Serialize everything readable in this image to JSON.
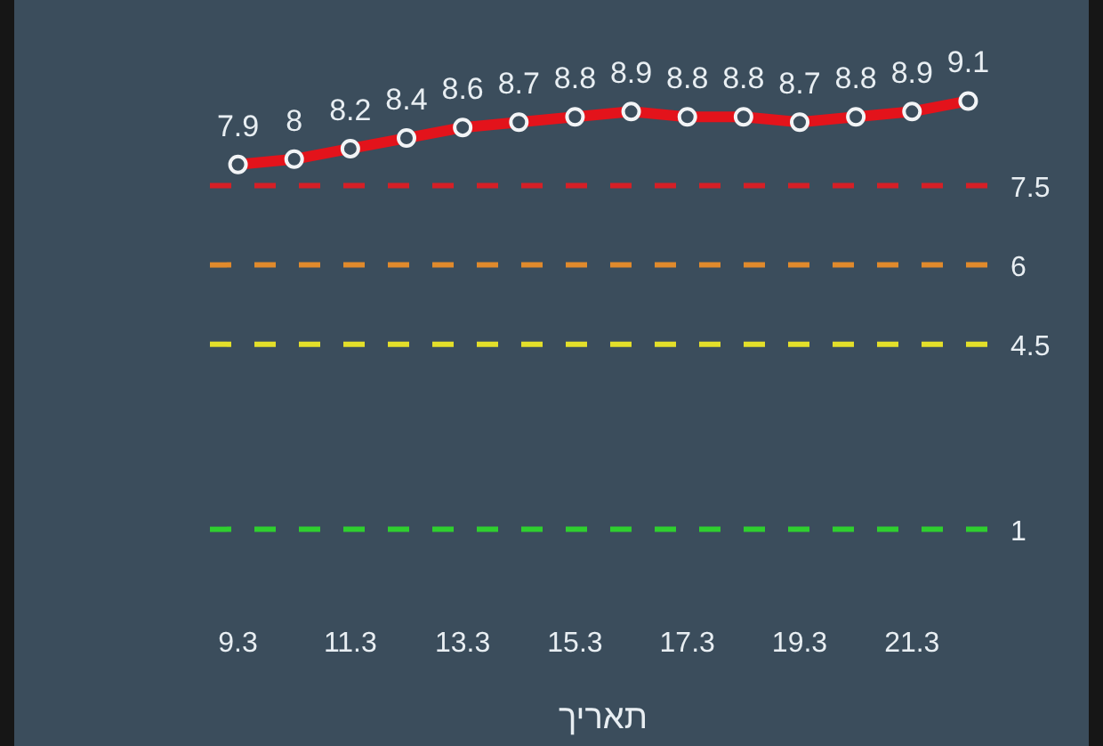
{
  "chart_data": {
    "type": "line",
    "xlabel": "תאריך",
    "categories": [
      "9.3",
      null,
      "11.3",
      null,
      "13.3",
      null,
      "15.3",
      null,
      "17.3",
      null,
      "19.3",
      null,
      "21.3",
      null
    ],
    "series": [
      {
        "color": "#e3131b",
        "values": [
          7.9,
          8,
          8.2,
          8.4,
          8.6,
          8.7,
          8.8,
          8.9,
          8.8,
          8.8,
          8.7,
          8.8,
          8.9,
          9.1
        ]
      }
    ],
    "tick_labels": "x",
    "data_labels": true,
    "marker": "circle",
    "line_style": "solid",
    "ref_lines": [
      {
        "axis": "y",
        "value": 7.5,
        "label": "7.5",
        "color": "#d61f26",
        "line_style": "dashed"
      },
      {
        "axis": "y",
        "value": 6,
        "label": "6",
        "color": "#e08a2c",
        "line_style": "dashed"
      },
      {
        "axis": "y",
        "value": 4.5,
        "label": "4.5",
        "color": "#e3df2a",
        "line_style": "dashed"
      },
      {
        "axis": "y",
        "value": 1,
        "label": "1",
        "color": "#2fcf2f",
        "line_style": "dashed"
      }
    ]
  }
}
